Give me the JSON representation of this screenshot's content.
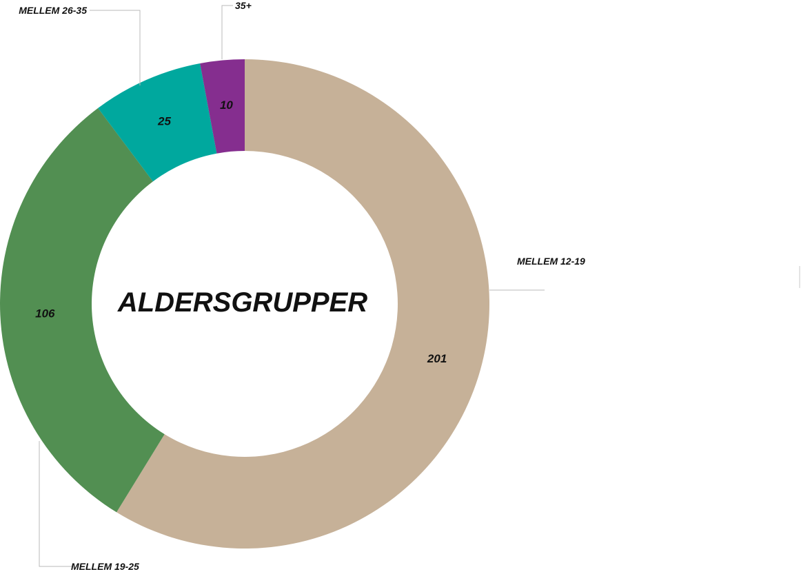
{
  "chart_data": {
    "type": "pie",
    "subtype": "donut",
    "center_title": "ALDERSGRUPPER",
    "categories": [
      "MELLEM 12-19",
      "MELLEM 19-25",
      "MELLEM 26-35",
      "35+"
    ],
    "values": [
      201,
      106,
      25,
      10
    ],
    "colors": [
      "#c6b198",
      "#528f52",
      "#00a89e",
      "#852e8f"
    ],
    "direction": "clockwise",
    "start": "top",
    "legend": "none"
  }
}
